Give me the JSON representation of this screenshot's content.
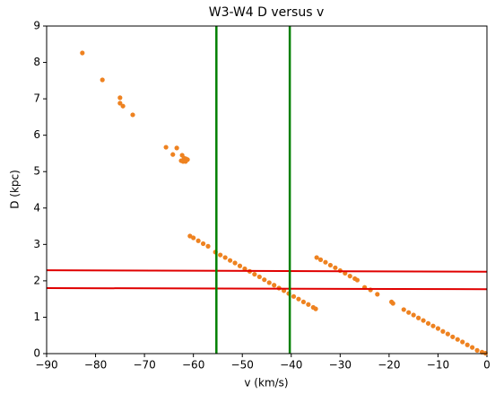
{
  "chart_data": {
    "type": "scatter",
    "title": "W3-W4 D versus v",
    "xlabel": "v (km/s)",
    "ylabel": "D (kpc)",
    "xlim": [
      -90,
      0
    ],
    "ylim": [
      0,
      9
    ],
    "xticks": [
      {
        "value": -90,
        "label": "−90"
      },
      {
        "value": -80,
        "label": "−80"
      },
      {
        "value": -70,
        "label": "−70"
      },
      {
        "value": -60,
        "label": "−60"
      },
      {
        "value": -50,
        "label": "−50"
      },
      {
        "value": -40,
        "label": "−40"
      },
      {
        "value": -30,
        "label": "−30"
      },
      {
        "value": -20,
        "label": "−20"
      },
      {
        "value": -10,
        "label": "−10"
      },
      0
    ],
    "yticks": [
      0,
      1,
      2,
      3,
      4,
      5,
      6,
      7,
      8,
      9
    ],
    "series": [
      {
        "color": "#ee8220",
        "x": [
          -82.7,
          -78.6,
          -75.0,
          -75.0,
          -74.4,
          -72.4,
          -65.6,
          -64.2,
          -63.4,
          -62.3,
          -61.9,
          -61.5,
          -61.2,
          -62.5,
          -62.1,
          -61.6,
          -60.7,
          -60,
          -59,
          -58,
          -57,
          -55.5,
          -54.5,
          -53.5,
          -52.5,
          -51.5,
          -50.5,
          -49.5,
          -48.5,
          -47.5,
          -46.5,
          -45.5,
          -44.5,
          -43.5,
          -42.5,
          -41.5,
          -40.5,
          -39.5,
          -38.5,
          -37.5,
          -36.5,
          -35.5,
          -35,
          -34.8,
          -34,
          -33,
          -32,
          -31,
          -30,
          -29,
          -28,
          -27,
          -26.5,
          -25,
          -23.8,
          -22.4,
          -19.5,
          -19.2,
          -17,
          -16,
          -15,
          -14,
          -13,
          -12,
          -11,
          -10,
          -9,
          -8,
          -7,
          -6,
          -5,
          -4,
          -3,
          -2,
          -1,
          -0.3
        ],
        "values": [
          8.26,
          7.52,
          7.03,
          6.88,
          6.8,
          6.56,
          5.67,
          5.47,
          5.65,
          5.45,
          5.37,
          5.35,
          5.33,
          5.3,
          5.28,
          5.28,
          3.23,
          3.18,
          3.1,
          3.02,
          2.95,
          2.79,
          2.71,
          2.64,
          2.56,
          2.49,
          2.41,
          2.33,
          2.26,
          2.18,
          2.11,
          2.03,
          1.95,
          1.88,
          1.8,
          1.73,
          1.65,
          1.57,
          1.5,
          1.42,
          1.35,
          1.27,
          1.23,
          2.64,
          2.58,
          2.51,
          2.43,
          2.36,
          2.28,
          2.21,
          2.13,
          2.06,
          2.02,
          1.82,
          1.75,
          1.63,
          1.42,
          1.38,
          1.21,
          1.13,
          1.06,
          0.98,
          0.91,
          0.83,
          0.76,
          0.69,
          0.61,
          0.54,
          0.46,
          0.39,
          0.32,
          0.24,
          0.17,
          0.09,
          0.04,
          0.01
        ]
      }
    ],
    "lines": [
      {
        "color": "#e00000",
        "x": [
          -90,
          0
        ],
        "values": [
          2.29,
          2.25
        ]
      },
      {
        "color": "#e00000",
        "x": [
          -90,
          0
        ],
        "values": [
          1.8,
          1.77
        ]
      }
    ],
    "vlines": [
      {
        "color": "#008000",
        "x": -55.3
      },
      {
        "color": "#008000",
        "x": -40.3
      }
    ]
  }
}
